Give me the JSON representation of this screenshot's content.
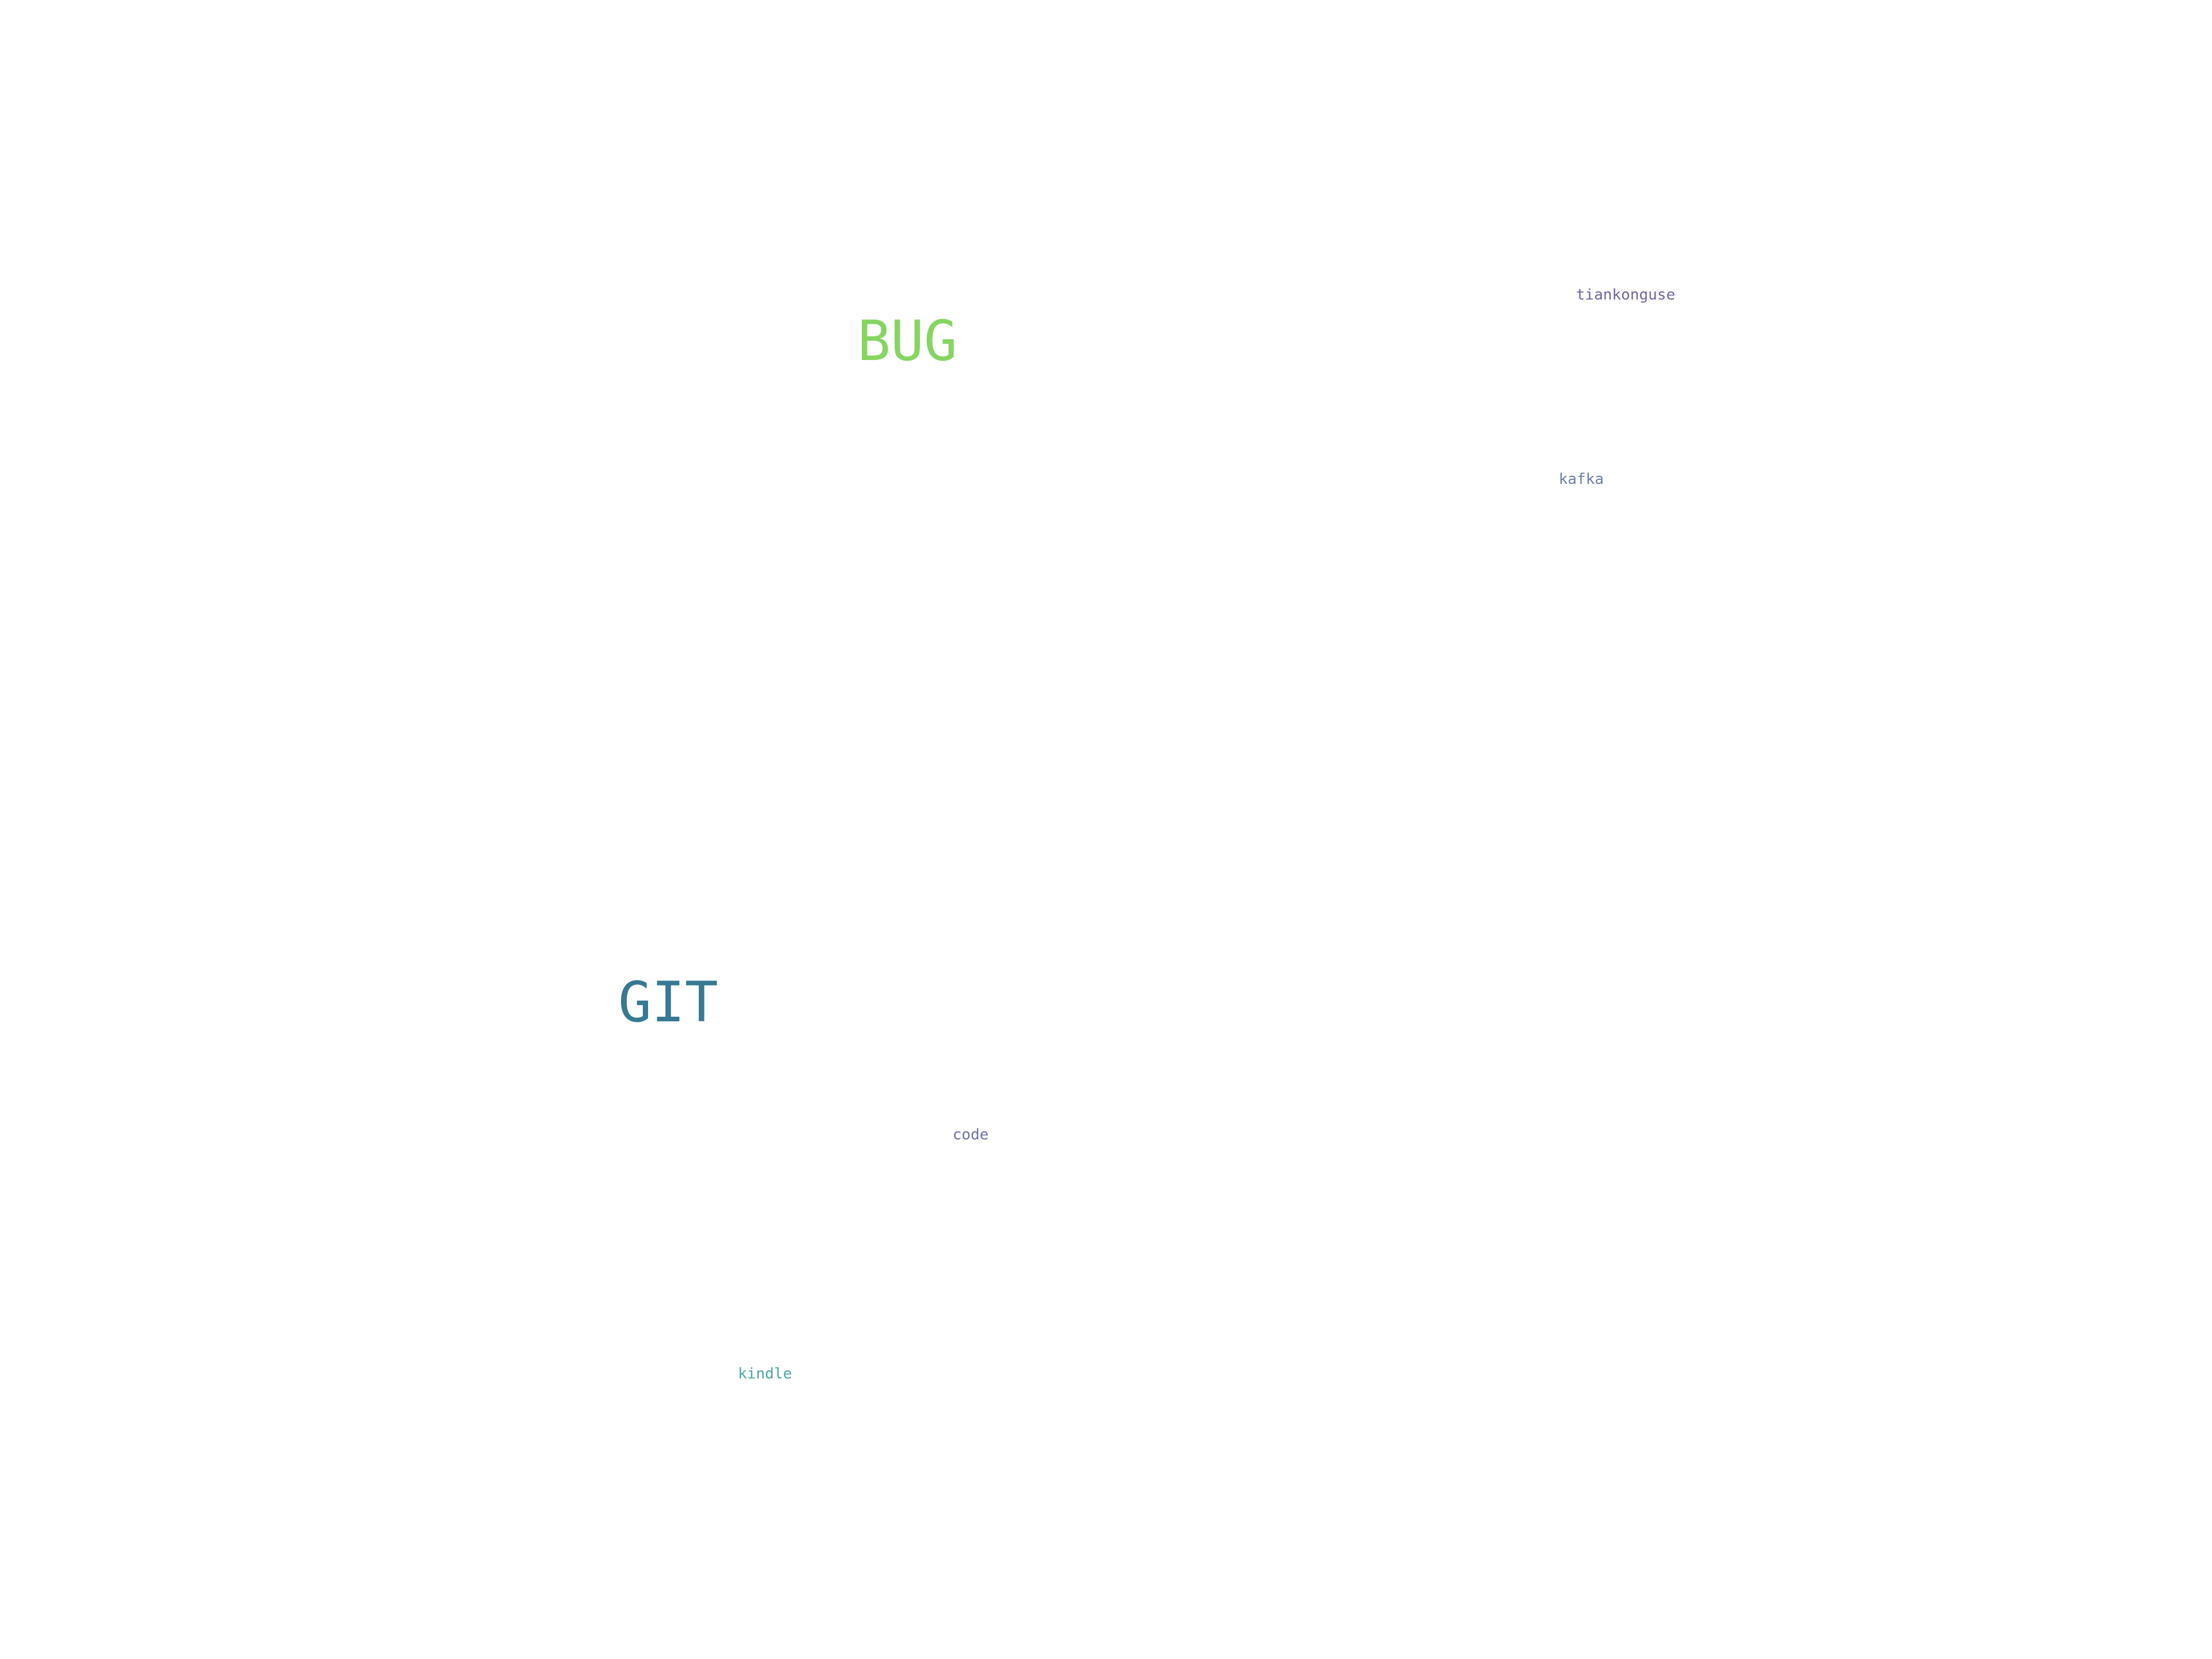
{
  "words": [
    {
      "text": "BUG",
      "color": "#7ad151"
    },
    {
      "text": "GIT",
      "color": "#2c728e"
    },
    {
      "text": "tiankonguse",
      "color": "#46327e"
    },
    {
      "text": "kafka",
      "color": "#3b528b"
    },
    {
      "text": "code",
      "color": "#414487"
    },
    {
      "text": "kindle",
      "color": "#21918c"
    }
  ]
}
